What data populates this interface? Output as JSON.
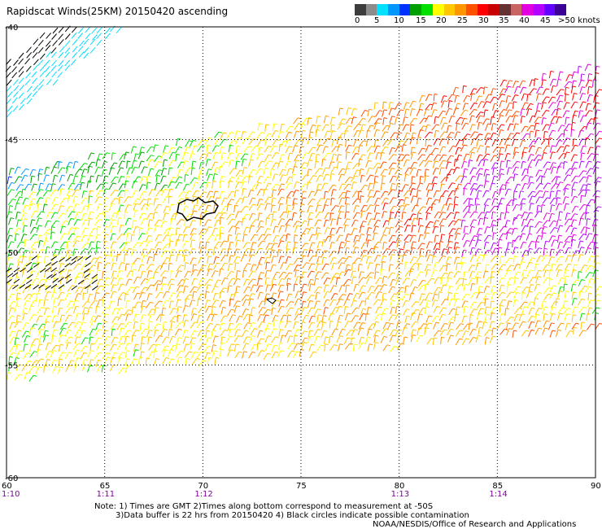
{
  "title": "Rapidscat Winds(25KM) 20150420 ascending",
  "scale": {
    "labels": [
      "0",
      "5",
      "10",
      "15",
      "20",
      "25",
      "30",
      "35",
      "40",
      "45",
      ">50 knots"
    ],
    "colors": [
      "#3c3c3c",
      "#8c8c8c",
      "#00e0ff",
      "#0096ff",
      "#0032ff",
      "#00a000",
      "#00e000",
      "#ffff00",
      "#ffc800",
      "#ff9600",
      "#ff5000",
      "#ff0000",
      "#c80000",
      "#643232",
      "#c86464",
      "#e000e0",
      "#b400ff",
      "#6400ff",
      "#3c0096"
    ]
  },
  "axes": {
    "lat_labels": [
      "-40",
      "-45",
      "-50",
      "-55",
      "-60"
    ],
    "lon_labels": [
      "60",
      "65",
      "70",
      "75",
      "80",
      "85",
      "90"
    ],
    "time_labels": [
      "1:10",
      "1:11",
      "1:12",
      "1:13",
      "1:14"
    ],
    "time_lons": [
      60,
      65,
      70,
      80,
      85
    ],
    "lon_range": [
      60,
      90
    ],
    "lat_range": [
      -60,
      -40
    ]
  },
  "notes": {
    "line1": "Note: 1) Times are GMT 2)Times along bottom correspond to measurement at -50S",
    "line2": "3)Data buffer is 22 hrs from 20150420 4) Black circles indicate possible contamination",
    "credit": "NOAA/NESDIS/Office of Research and Applications"
  },
  "colors": {
    "grid": "#000000",
    "time_label": "#8000a0"
  }
}
